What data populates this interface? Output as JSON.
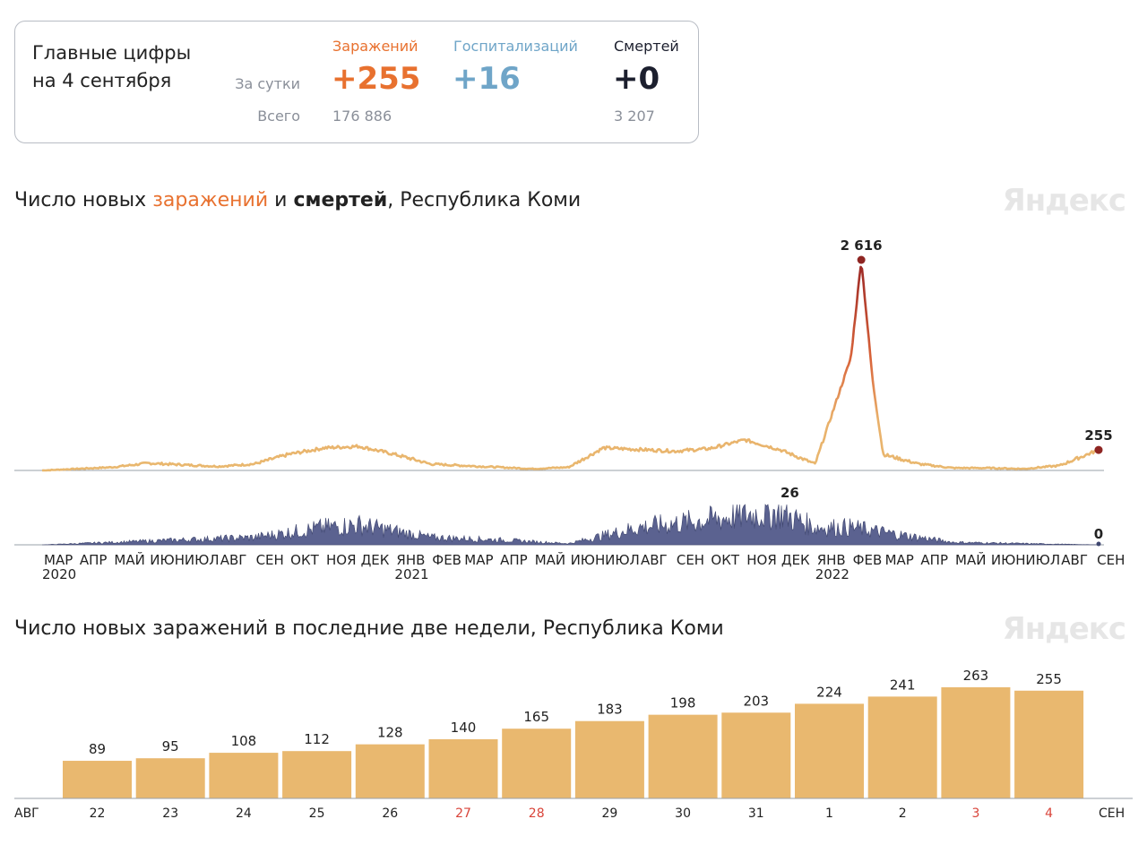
{
  "summary": {
    "headline_line1": "Главные цифры",
    "headline_line2": "на 4 сентября",
    "row_daily": "За сутки",
    "row_total": "Всего",
    "cols": [
      {
        "label": "Заражений",
        "daily": "+255",
        "total": "176 886",
        "color": "#e8712f"
      },
      {
        "label": "Госпитализаций",
        "daily": "+16",
        "total": "",
        "color": "#6fa5c8"
      },
      {
        "label": "Смертей",
        "daily": "+0",
        "total": "3 207",
        "color": "#1c1f2e"
      }
    ]
  },
  "brand": "Яндекс",
  "chart1": {
    "title_parts": [
      "Число новых ",
      "заражений",
      " и ",
      "смертей",
      ", Республика Коми"
    ],
    "peak_label": "2 616",
    "last_label": "255",
    "deaths_peak_label": "26",
    "deaths_last_label": "0",
    "month_labels": [
      "МАР",
      "АПР",
      "МАЙ",
      "ИЮН",
      "ИЮЛ",
      "АВГ",
      "СЕН",
      "ОКТ",
      "НОЯ",
      "ДЕК",
      "ЯНВ",
      "ФЕВ",
      "МАР",
      "АПР",
      "МАЙ",
      "ИЮН",
      "ИЮЛ",
      "АВГ",
      "СЕН",
      "ОКТ",
      "НОЯ",
      "ДЕК",
      "ЯНВ",
      "ФЕВ",
      "МАР",
      "АПР",
      "МАЙ",
      "ИЮН",
      "ИЮЛ",
      "АВГ",
      "СЕН"
    ],
    "year_labels": [
      "2020",
      "2021",
      "2022"
    ]
  },
  "chart_data": [
    {
      "type": "line",
      "title": "Число новых заражений и смертей, Республика Коми",
      "series": [
        {
          "name": "заражений",
          "x": [
            "2020-03",
            "2020-05",
            "2020-06",
            "2020-08",
            "2020-09",
            "2020-10",
            "2020-11",
            "2020-12",
            "2021-01",
            "2021-02",
            "2021-03",
            "2021-04",
            "2021-05",
            "2021-06",
            "2021-07",
            "2021-08",
            "2021-09",
            "2021-10",
            "2021-11",
            "2021-12",
            "2022-01",
            "2022-02-01",
            "2022-02-10",
            "2022-02-20",
            "2022-03",
            "2022-04",
            "2022-05",
            "2022-06",
            "2022-07",
            "2022-08",
            "2022-09-04"
          ],
          "values": [
            0,
            40,
            90,
            50,
            80,
            200,
            280,
            300,
            200,
            80,
            60,
            40,
            20,
            40,
            280,
            260,
            240,
            270,
            380,
            260,
            80,
            1400,
            2616,
            1100,
            200,
            80,
            30,
            30,
            20,
            60,
            255
          ]
        },
        {
          "name": "смертей",
          "x": [
            "2020-03",
            "2020-05",
            "2020-07",
            "2020-09",
            "2020-11",
            "2020-12",
            "2021-02",
            "2021-04",
            "2021-06",
            "2021-08",
            "2021-10",
            "2021-11",
            "2021-12",
            "2022-01",
            "2022-02",
            "2022-03",
            "2022-05",
            "2022-07",
            "2022-09-04"
          ],
          "values": [
            0,
            2,
            4,
            6,
            14,
            16,
            6,
            4,
            1,
            14,
            20,
            24,
            26,
            14,
            14,
            10,
            2,
            1,
            0
          ]
        }
      ]
    },
    {
      "type": "bar",
      "title": "Число новых заражений в последние две недели, Республика Коми",
      "categories": [
        "22",
        "23",
        "24",
        "25",
        "26",
        "27",
        "28",
        "29",
        "30",
        "31",
        "1",
        "2",
        "3",
        "4"
      ],
      "values": [
        89,
        95,
        108,
        112,
        128,
        140,
        165,
        183,
        198,
        203,
        224,
        241,
        263,
        255
      ],
      "weekend": [
        false,
        false,
        false,
        false,
        false,
        true,
        true,
        false,
        false,
        false,
        false,
        false,
        true,
        true
      ],
      "axis_start_label": "АВГ",
      "axis_end_label": "СЕН"
    }
  ]
}
